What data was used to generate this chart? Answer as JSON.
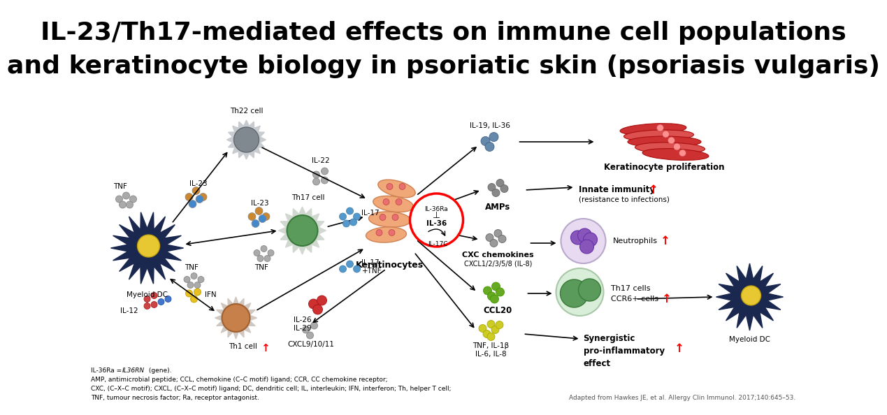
{
  "title_line1": "IL-23/Th17-mediated effects on immune cell populations",
  "title_line2": "and keratinocyte biology in psoriatic skin (psoriasis vulgaris)",
  "title_fontsize": 26,
  "title_fontweight": "bold",
  "bg_color": "#ffffff",
  "footnote_line2": "AMP, antimicrobial peptide; CCL, chemokine (C–C motif) ligand; CCR, CC chemokine receptor;",
  "footnote_line3": "CXC, (C–X–C motif); CXCL, (C–X–C motif) ligand; DC, dendritic cell; IL, interleukin; IFN, interferon; Th, helper T cell;",
  "footnote_line4": "TNF, tumour necrosis factor; Ra, receptor antagonist.",
  "citation": "Adapted from Hawkes JE, et al. Allergy Clin Immunol. 2017;140:645–53.",
  "labels": {
    "th22_cell": "Th22 cell",
    "th17_cell": "Th17 cell",
    "th1_cell": "Th1 cell",
    "myeloid_dc_left": "Myeloid DC",
    "myeloid_dc_right": "Myeloid DC",
    "keratinocytes": "Keratinocytes",
    "keratinocyte_prolif": "Keratinocyte proliferation",
    "innate_immunity": "Innate immunity",
    "innate_immunity2": "(resistance to infections)",
    "amps": "AMPs",
    "cxc_chemokines": "CXC chemokines",
    "cxcl": "CXCL1/2/3/5/8 (IL-8)",
    "ccl20": "CCL20",
    "neutrophils": "Neutrophils",
    "th17_cells": "Th17 cells",
    "ccr6": "CCR6+ cells",
    "synergistic": "Synergistic\npro-inflammatory\neffect",
    "il22": "IL-22",
    "il23_1": "IL-23",
    "il23_2": "IL-23",
    "tnf_1": "TNF",
    "tnf_2": "TNF",
    "tnf_3": "TNF",
    "il17_1": "IL-17",
    "il17_2": "IL-17\n+TNF",
    "il26_29": "IL-26\nIL-29",
    "il12": "IL-12",
    "ifn": "IFN",
    "il19_36": "IL-19, IL-36",
    "il36ra": "IL-36Ra",
    "il36": "IL-36",
    "il17c": "IL-17C",
    "cxcl9": "CXCL9/10/11",
    "tnf_il1b": "TNF, IL-1β",
    "il6_il8": "IL-6, IL-8",
    "inhibit": "⊥"
  }
}
